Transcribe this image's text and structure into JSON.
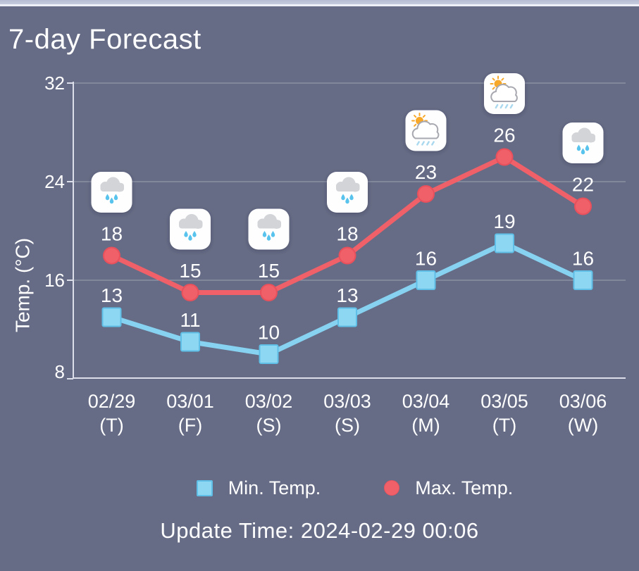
{
  "header": {
    "title": "7-day Forecast"
  },
  "chart_data": {
    "type": "line",
    "title": "7-day Forecast",
    "categories": [
      "02/29",
      "03/01",
      "03/02",
      "03/03",
      "03/04",
      "03/05",
      "03/06"
    ],
    "day_labels": [
      "(T)",
      "(F)",
      "(S)",
      "(S)",
      "(M)",
      "(T)",
      "(W)"
    ],
    "series": [
      {
        "name": "Max. Temp.",
        "values": [
          18,
          15,
          15,
          18,
          23,
          26,
          22
        ],
        "marker": "circle",
        "color": "#ef6069",
        "marker_border": "#e8505c"
      },
      {
        "name": "Min. Temp.",
        "values": [
          13,
          11,
          10,
          13,
          16,
          19,
          16
        ],
        "marker": "square",
        "color": "#87d2f1",
        "marker_fill": "#8ed7f3",
        "marker_border": "#5fbfe6"
      }
    ],
    "weather_icons": [
      "rain",
      "rain",
      "rain",
      "rain",
      "sun-rain",
      "sun-rain",
      "rain"
    ],
    "xlabel": "",
    "ylabel": "Temp. (°C)",
    "yticks": [
      8,
      16,
      24,
      32
    ],
    "ylim": [
      8,
      32
    ],
    "grid": true,
    "legend_position": "bottom"
  },
  "legend": {
    "min_label": "Min. Temp.",
    "max_label": "Max. Temp."
  },
  "footer": {
    "update_time": "Update Time: 2024-02-29 00:06"
  },
  "colors": {
    "background": "#666c85",
    "grid_line": "#9298aa",
    "axis_line": "#dcdfe9",
    "text": "#ffffff",
    "max_series": "#ef6069",
    "min_series": "#87d2f1",
    "icon_cloud": "#d2d4d8",
    "icon_drop": "#58c3ec",
    "icon_sun": "#f7a829"
  }
}
